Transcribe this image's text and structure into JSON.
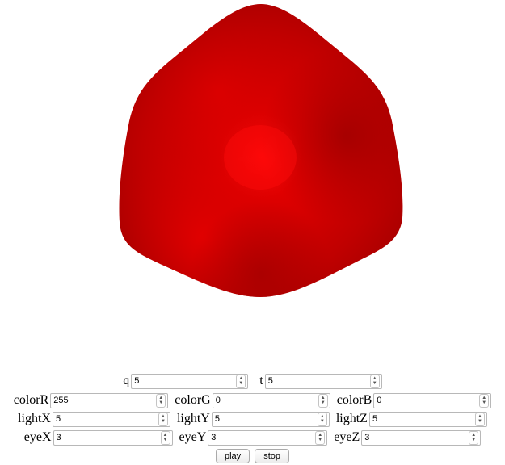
{
  "shape": {
    "color": "#ff0000"
  },
  "controls": {
    "q": {
      "label": "q",
      "value": "5"
    },
    "t": {
      "label": "t",
      "value": "5"
    },
    "colorR": {
      "label": "colorR",
      "value": "255"
    },
    "colorG": {
      "label": "colorG",
      "value": "0"
    },
    "colorB": {
      "label": "colorB",
      "value": "0"
    },
    "lightX": {
      "label": "lightX",
      "value": "5"
    },
    "lightY": {
      "label": "lightY",
      "value": "5"
    },
    "lightZ": {
      "label": "lightZ",
      "value": "5"
    },
    "eyeX": {
      "label": "eyeX",
      "value": "3"
    },
    "eyeY": {
      "label": "eyeY",
      "value": "3"
    },
    "eyeZ": {
      "label": "eyeZ",
      "value": "3"
    }
  },
  "buttons": {
    "play": "play",
    "stop": "stop"
  }
}
